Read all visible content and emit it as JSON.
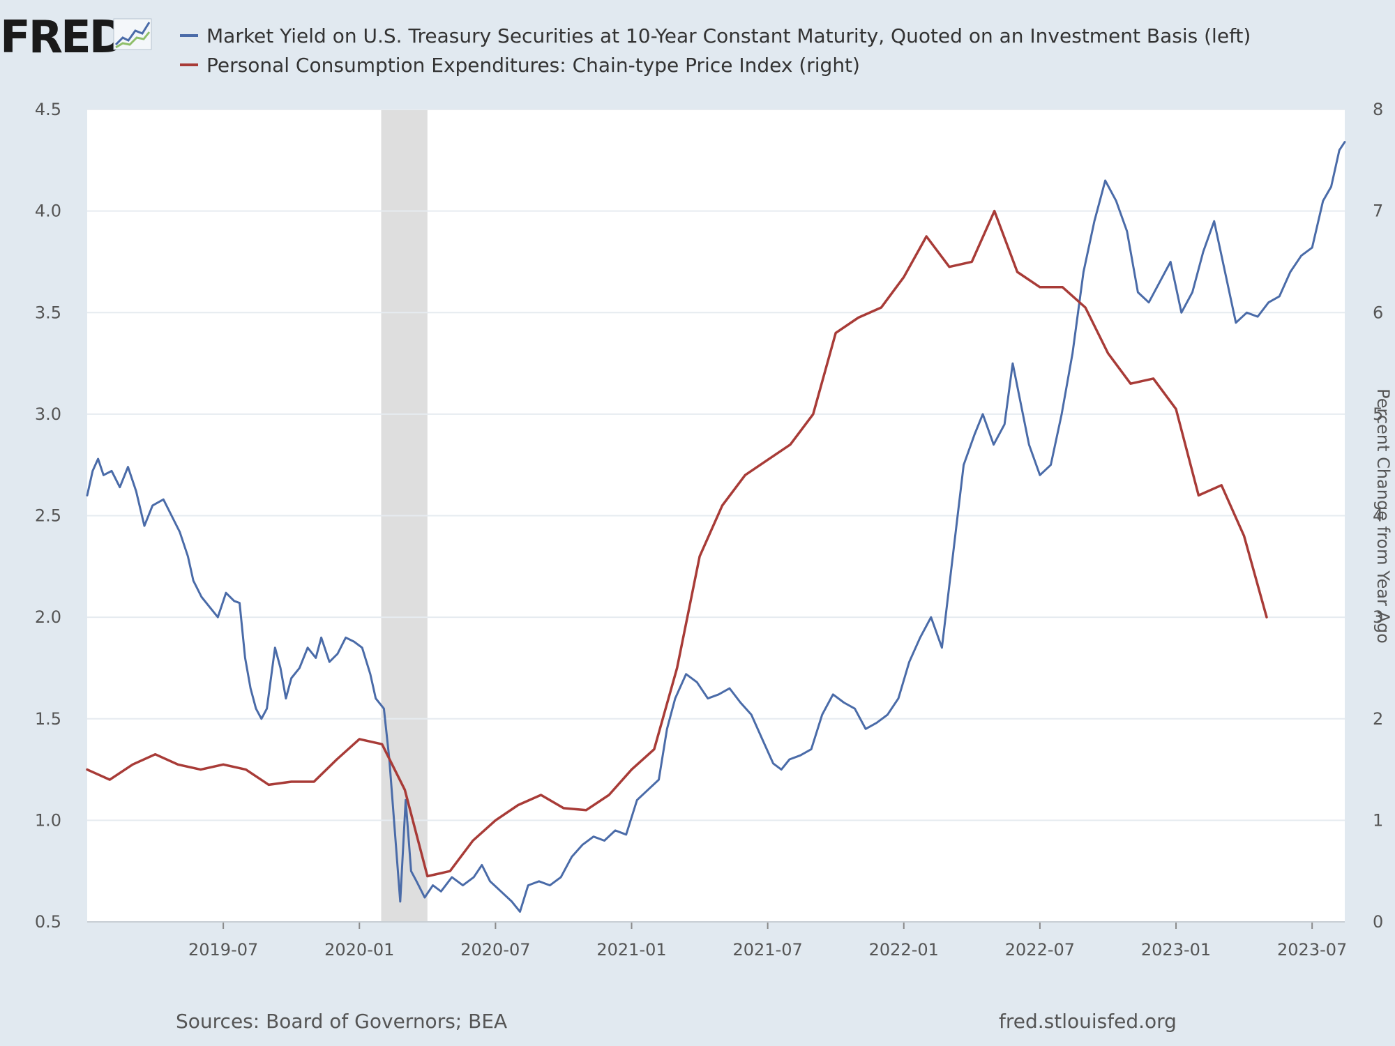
{
  "header": {
    "logo_text": "FRED",
    "logo_graph_icon": "line-graph-icon"
  },
  "colors": {
    "background": "#e1e9f0",
    "plot_bg": "#ffffff",
    "grid": "#e6ebf0",
    "recession": "#dedede",
    "series_blue": "#4a6ba8",
    "series_red": "#a83b37"
  },
  "footer": {
    "source": "Sources: Board of Governors; BEA",
    "site": "fred.stlouisfed.org"
  },
  "chart_data": {
    "type": "line",
    "title": "",
    "legend": [
      "Market Yield on U.S. Treasury Securities at 10-Year Constant Maturity, Quoted on an Investment Basis (left)",
      "Personal Consumption Expenditures: Chain-type Price Index (right)"
    ],
    "legend_placement": "top-left",
    "x_range": [
      2019.0,
      2023.62
    ],
    "x_ticks": [
      {
        "label": "2019-07",
        "value": 2019.5
      },
      {
        "label": "2020-01",
        "value": 2020.0
      },
      {
        "label": "2020-07",
        "value": 2020.5
      },
      {
        "label": "2021-01",
        "value": 2021.0
      },
      {
        "label": "2021-07",
        "value": 2021.5
      },
      {
        "label": "2022-01",
        "value": 2022.0
      },
      {
        "label": "2022-07",
        "value": 2022.5
      },
      {
        "label": "2023-01",
        "value": 2023.0
      },
      {
        "label": "2023-07",
        "value": 2023.5
      }
    ],
    "y_left": {
      "label": "",
      "range": [
        0.5,
        4.5
      ],
      "ticks": [
        "0.5",
        "1.0",
        "1.5",
        "2.0",
        "2.5",
        "3.0",
        "3.5",
        "4.0",
        "4.5"
      ]
    },
    "y_right": {
      "label": "Percent Change from Year Ago",
      "range": [
        0,
        8
      ],
      "ticks": [
        "0",
        "1",
        "2",
        "3",
        "4",
        "5",
        "6",
        "7",
        "8"
      ]
    },
    "recession_shading": [
      2020.08,
      2020.25
    ],
    "grid": true,
    "series": [
      {
        "name": "Market Yield on U.S. Treasury Securities at 10-Year Constant Maturity, Quoted on an Investment Basis (left)",
        "axis": "left",
        "color": "#4a6ba8",
        "points": [
          [
            2019.0,
            2.6
          ],
          [
            2019.02,
            2.72
          ],
          [
            2019.04,
            2.78
          ],
          [
            2019.06,
            2.7
          ],
          [
            2019.09,
            2.72
          ],
          [
            2019.12,
            2.64
          ],
          [
            2019.15,
            2.74
          ],
          [
            2019.18,
            2.62
          ],
          [
            2019.21,
            2.45
          ],
          [
            2019.24,
            2.55
          ],
          [
            2019.28,
            2.58
          ],
          [
            2019.31,
            2.5
          ],
          [
            2019.34,
            2.42
          ],
          [
            2019.37,
            2.3
          ],
          [
            2019.39,
            2.18
          ],
          [
            2019.42,
            2.1
          ],
          [
            2019.45,
            2.05
          ],
          [
            2019.48,
            2.0
          ],
          [
            2019.51,
            2.12
          ],
          [
            2019.54,
            2.08
          ],
          [
            2019.56,
            2.07
          ],
          [
            2019.58,
            1.8
          ],
          [
            2019.6,
            1.65
          ],
          [
            2019.62,
            1.55
          ],
          [
            2019.64,
            1.5
          ],
          [
            2019.66,
            1.55
          ],
          [
            2019.69,
            1.85
          ],
          [
            2019.71,
            1.75
          ],
          [
            2019.73,
            1.6
          ],
          [
            2019.75,
            1.7
          ],
          [
            2019.78,
            1.75
          ],
          [
            2019.81,
            1.85
          ],
          [
            2019.84,
            1.8
          ],
          [
            2019.86,
            1.9
          ],
          [
            2019.89,
            1.78
          ],
          [
            2019.92,
            1.82
          ],
          [
            2019.95,
            1.9
          ],
          [
            2019.98,
            1.88
          ],
          [
            2020.01,
            1.85
          ],
          [
            2020.04,
            1.72
          ],
          [
            2020.06,
            1.6
          ],
          [
            2020.09,
            1.55
          ],
          [
            2020.11,
            1.3
          ],
          [
            2020.13,
            0.95
          ],
          [
            2020.15,
            0.6
          ],
          [
            2020.17,
            1.1
          ],
          [
            2020.19,
            0.75
          ],
          [
            2020.21,
            0.7
          ],
          [
            2020.24,
            0.62
          ],
          [
            2020.27,
            0.68
          ],
          [
            2020.3,
            0.65
          ],
          [
            2020.34,
            0.72
          ],
          [
            2020.38,
            0.68
          ],
          [
            2020.42,
            0.72
          ],
          [
            2020.45,
            0.78
          ],
          [
            2020.48,
            0.7
          ],
          [
            2020.52,
            0.65
          ],
          [
            2020.56,
            0.6
          ],
          [
            2020.59,
            0.55
          ],
          [
            2020.62,
            0.68
          ],
          [
            2020.66,
            0.7
          ],
          [
            2020.7,
            0.68
          ],
          [
            2020.74,
            0.72
          ],
          [
            2020.78,
            0.82
          ],
          [
            2020.82,
            0.88
          ],
          [
            2020.86,
            0.92
          ],
          [
            2020.9,
            0.9
          ],
          [
            2020.94,
            0.95
          ],
          [
            2020.98,
            0.93
          ],
          [
            2021.02,
            1.1
          ],
          [
            2021.06,
            1.15
          ],
          [
            2021.1,
            1.2
          ],
          [
            2021.13,
            1.45
          ],
          [
            2021.16,
            1.6
          ],
          [
            2021.2,
            1.72
          ],
          [
            2021.24,
            1.68
          ],
          [
            2021.28,
            1.6
          ],
          [
            2021.32,
            1.62
          ],
          [
            2021.36,
            1.65
          ],
          [
            2021.4,
            1.58
          ],
          [
            2021.44,
            1.52
          ],
          [
            2021.48,
            1.4
          ],
          [
            2021.52,
            1.28
          ],
          [
            2021.55,
            1.25
          ],
          [
            2021.58,
            1.3
          ],
          [
            2021.62,
            1.32
          ],
          [
            2021.66,
            1.35
          ],
          [
            2021.7,
            1.52
          ],
          [
            2021.74,
            1.62
          ],
          [
            2021.78,
            1.58
          ],
          [
            2021.82,
            1.55
          ],
          [
            2021.86,
            1.45
          ],
          [
            2021.9,
            1.48
          ],
          [
            2021.94,
            1.52
          ],
          [
            2021.98,
            1.6
          ],
          [
            2022.02,
            1.78
          ],
          [
            2022.06,
            1.9
          ],
          [
            2022.1,
            2.0
          ],
          [
            2022.14,
            1.85
          ],
          [
            2022.18,
            2.3
          ],
          [
            2022.22,
            2.75
          ],
          [
            2022.26,
            2.9
          ],
          [
            2022.29,
            3.0
          ],
          [
            2022.33,
            2.85
          ],
          [
            2022.37,
            2.95
          ],
          [
            2022.4,
            3.25
          ],
          [
            2022.43,
            3.05
          ],
          [
            2022.46,
            2.85
          ],
          [
            2022.5,
            2.7
          ],
          [
            2022.54,
            2.75
          ],
          [
            2022.58,
            3.0
          ],
          [
            2022.62,
            3.3
          ],
          [
            2022.66,
            3.7
          ],
          [
            2022.7,
            3.95
          ],
          [
            2022.74,
            4.15
          ],
          [
            2022.78,
            4.05
          ],
          [
            2022.82,
            3.9
          ],
          [
            2022.86,
            3.6
          ],
          [
            2022.9,
            3.55
          ],
          [
            2022.94,
            3.65
          ],
          [
            2022.98,
            3.75
          ],
          [
            2023.02,
            3.5
          ],
          [
            2023.06,
            3.6
          ],
          [
            2023.1,
            3.8
          ],
          [
            2023.14,
            3.95
          ],
          [
            2023.18,
            3.7
          ],
          [
            2023.22,
            3.45
          ],
          [
            2023.26,
            3.5
          ],
          [
            2023.3,
            3.48
          ],
          [
            2023.34,
            3.55
          ],
          [
            2023.38,
            3.58
          ],
          [
            2023.42,
            3.7
          ],
          [
            2023.46,
            3.78
          ],
          [
            2023.5,
            3.82
          ],
          [
            2023.54,
            4.05
          ],
          [
            2023.57,
            4.12
          ],
          [
            2023.6,
            4.3
          ],
          [
            2023.62,
            4.34
          ]
        ]
      },
      {
        "name": "Personal Consumption Expenditures: Chain-type Price Index (right)",
        "axis": "right",
        "color": "#a83b37",
        "points": [
          [
            2019.0,
            1.5
          ],
          [
            2019.083,
            1.4
          ],
          [
            2019.167,
            1.55
          ],
          [
            2019.25,
            1.65
          ],
          [
            2019.333,
            1.55
          ],
          [
            2019.417,
            1.5
          ],
          [
            2019.5,
            1.55
          ],
          [
            2019.583,
            1.5
          ],
          [
            2019.667,
            1.35
          ],
          [
            2019.75,
            1.38
          ],
          [
            2019.833,
            1.38
          ],
          [
            2019.917,
            1.6
          ],
          [
            2020.0,
            1.8
          ],
          [
            2020.083,
            1.75
          ],
          [
            2020.167,
            1.3
          ],
          [
            2020.25,
            0.45
          ],
          [
            2020.333,
            0.5
          ],
          [
            2020.417,
            0.8
          ],
          [
            2020.5,
            1.0
          ],
          [
            2020.583,
            1.15
          ],
          [
            2020.667,
            1.25
          ],
          [
            2020.75,
            1.12
          ],
          [
            2020.833,
            1.1
          ],
          [
            2020.917,
            1.25
          ],
          [
            2021.0,
            1.5
          ],
          [
            2021.083,
            1.7
          ],
          [
            2021.167,
            2.5
          ],
          [
            2021.25,
            3.6
          ],
          [
            2021.333,
            4.1
          ],
          [
            2021.417,
            4.4
          ],
          [
            2021.5,
            4.55
          ],
          [
            2021.583,
            4.7
          ],
          [
            2021.667,
            5.0
          ],
          [
            2021.75,
            5.8
          ],
          [
            2021.833,
            5.95
          ],
          [
            2021.917,
            6.05
          ],
          [
            2022.0,
            6.35
          ],
          [
            2022.083,
            6.75
          ],
          [
            2022.167,
            6.45
          ],
          [
            2022.25,
            6.5
          ],
          [
            2022.333,
            7.0
          ],
          [
            2022.417,
            6.4
          ],
          [
            2022.5,
            6.25
          ],
          [
            2022.583,
            6.25
          ],
          [
            2022.667,
            6.05
          ],
          [
            2022.75,
            5.6
          ],
          [
            2022.833,
            5.3
          ],
          [
            2022.917,
            5.35
          ],
          [
            2023.0,
            5.05
          ],
          [
            2023.083,
            4.2
          ],
          [
            2023.167,
            4.3
          ],
          [
            2023.25,
            3.8
          ],
          [
            2023.333,
            3.0
          ]
        ]
      }
    ]
  }
}
